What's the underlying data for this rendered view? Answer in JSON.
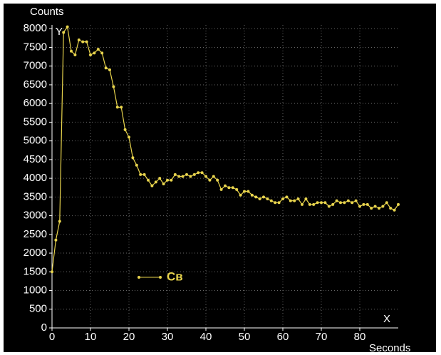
{
  "chart_data": {
    "type": "line",
    "y_label": "Counts",
    "y_axis_name": "Y",
    "x_axis_name": "X",
    "x_label": "Seconds",
    "x": [
      0,
      1,
      2,
      3,
      4,
      5,
      6,
      7,
      8,
      9,
      10,
      11,
      12,
      13,
      14,
      15,
      16,
      17,
      18,
      19,
      20,
      21,
      22,
      23,
      24,
      25,
      26,
      27,
      28,
      29,
      30,
      31,
      32,
      33,
      34,
      35,
      36,
      37,
      38,
      39,
      40,
      41,
      42,
      43,
      44,
      45,
      46,
      47,
      48,
      49,
      50,
      51,
      52,
      53,
      54,
      55,
      56,
      57,
      58,
      59,
      60,
      61,
      62,
      63,
      64,
      65,
      66,
      67,
      68,
      69,
      70,
      71,
      72,
      73,
      74,
      75,
      76,
      77,
      78,
      79,
      80,
      81,
      82,
      83,
      84,
      85,
      86,
      87,
      88,
      89,
      90
    ],
    "series": [
      {
        "name": "Cв",
        "color": "#e8d44d",
        "values": [
          1500,
          2350,
          2850,
          7900,
          8050,
          7400,
          7300,
          7700,
          7650,
          7650,
          7300,
          7350,
          7450,
          7350,
          6950,
          6900,
          6450,
          5900,
          5900,
          5300,
          5100,
          4550,
          4350,
          4100,
          4100,
          3950,
          3800,
          3900,
          4000,
          3850,
          3950,
          3950,
          4100,
          4050,
          4050,
          4100,
          4050,
          4100,
          4150,
          4150,
          4050,
          3950,
          4050,
          3950,
          3700,
          3800,
          3750,
          3750,
          3700,
          3550,
          3650,
          3650,
          3550,
          3500,
          3450,
          3500,
          3450,
          3400,
          3350,
          3350,
          3450,
          3500,
          3400,
          3400,
          3450,
          3300,
          3450,
          3300,
          3300,
          3350,
          3350,
          3350,
          3250,
          3300,
          3400,
          3350,
          3350,
          3400,
          3350,
          3400,
          3250,
          3300,
          3300,
          3200,
          3250,
          3200,
          3250,
          3350,
          3200,
          3150,
          3300
        ]
      }
    ],
    "xlim": [
      0,
      90
    ],
    "ylim": [
      0,
      8100
    ],
    "xticks": [
      0,
      10,
      20,
      30,
      40,
      50,
      60,
      70,
      80
    ],
    "yticks": [
      0,
      500,
      1000,
      1500,
      2000,
      2500,
      3000,
      3500,
      4000,
      4500,
      5000,
      5500,
      6000,
      6500,
      7000,
      7500,
      8000
    ],
    "grid": true
  }
}
